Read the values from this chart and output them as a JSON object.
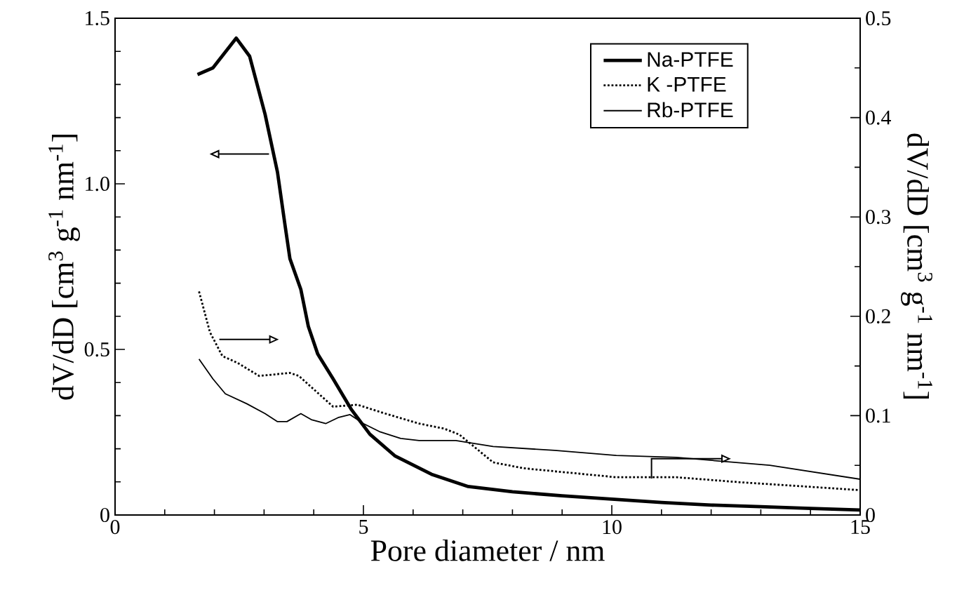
{
  "chart_data": {
    "type": "line",
    "xlabel": "Pore diameter / nm",
    "ylabel": "dV/dD [cm$^{3}$ g$^{-1}$ nm$^{-1}$]",
    "y2label": "dV/dD [cm$^{3}$ g$^{-1}$ nm$^{-1}$]",
    "xlim": [
      0,
      15
    ],
    "xticks": [
      0,
      5,
      10,
      15
    ],
    "ylim": [
      0,
      1.5
    ],
    "yticks": [
      0,
      {
        "value": 0.5,
        "label": "0.5"
      },
      {
        "value": 1,
        "label": "1.0"
      },
      1.5
    ],
    "y2lim": [
      0,
      0.5
    ],
    "y2ticks": [
      0,
      0.1,
      0.2,
      0.3,
      0.4,
      0.5
    ],
    "legend": "top right",
    "grid": false,
    "marker": "none",
    "series": [
      {
        "name": "Na-PTFE",
        "color": "#000000",
        "line_style": "solid",
        "x": [
          1.66,
          1.97,
          2.44,
          2.71,
          3.02,
          3.27,
          3.42,
          3.52,
          3.74,
          3.89,
          4.08,
          4.39,
          4.76,
          5.13,
          5.63,
          6.37,
          7.11,
          8,
          9,
          10,
          11,
          12,
          13,
          14,
          15
        ],
        "values": [
          1.33,
          1.35,
          1.44,
          1.385,
          1.21,
          1.035,
          0.877,
          0.774,
          0.681,
          0.57,
          0.486,
          0.411,
          0.318,
          0.244,
          0.179,
          0.123,
          0.086,
          0.07,
          0.058,
          0.048,
          0.038,
          0.03,
          0.025,
          0.02,
          0.015
        ]
      },
      {
        "name": "K -PTFE",
        "color": "#000000",
        "line_style": "dotted",
        "axis": "y2",
        "x": [
          1.69,
          1.91,
          2.16,
          2.47,
          2.9,
          3.52,
          3.7,
          4.39,
          4.88,
          5.38,
          6.12,
          6.62,
          6.93,
          7.61,
          8.23,
          10.09,
          11.3,
          12.57,
          13.8,
          15
        ],
        "values": [
          0.225,
          0.184,
          0.16,
          0.153,
          0.14,
          0.143,
          0.14,
          0.109,
          0.111,
          0.103,
          0.092,
          0.087,
          0.081,
          0.053,
          0.047,
          0.038,
          0.038,
          0.033,
          0.029,
          0.025
        ]
      },
      {
        "name": "Rb-PTFE",
        "color": "#000000",
        "line_style": "solid",
        "axis": "y2",
        "x": [
          1.69,
          1.97,
          2.22,
          2.65,
          3.02,
          3.27,
          3.46,
          3.74,
          3.95,
          4.24,
          4.49,
          4.73,
          5.0,
          5.32,
          5.75,
          6.12,
          6.86,
          7.61,
          8.85,
          10.09,
          11.3,
          13.18,
          15
        ],
        "values": [
          0.157,
          0.137,
          0.122,
          0.112,
          0.102,
          0.094,
          0.094,
          0.102,
          0.096,
          0.092,
          0.098,
          0.101,
          0.092,
          0.084,
          0.077,
          0.075,
          0.075,
          0.069,
          0.065,
          0.06,
          0.058,
          0.05,
          0.036
        ]
      }
    ]
  }
}
